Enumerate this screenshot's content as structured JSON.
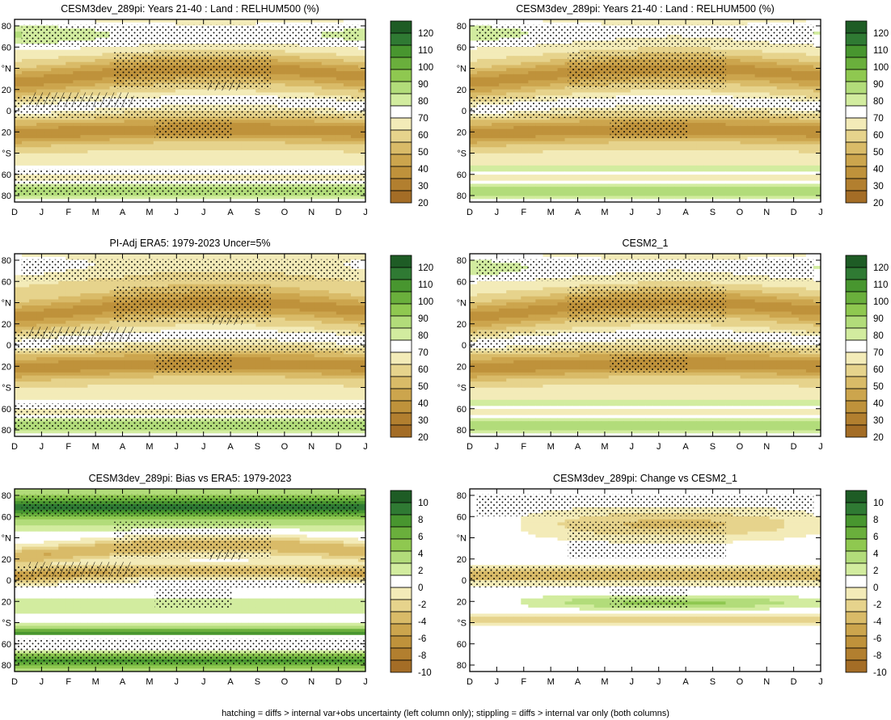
{
  "footer": "hatching = diffs > internal var+obs uncertainty (left column only); stippling = diffs > internal var only (both columns)",
  "months": [
    "D",
    "J",
    "F",
    "M",
    "A",
    "M",
    "J",
    "J",
    "A",
    "S",
    "O",
    "N",
    "D",
    "J"
  ],
  "lat_ticks": [
    "80",
    "60",
    "°N",
    "20",
    "0",
    "20",
    "°S",
    "60",
    "80"
  ],
  "colorbars": {
    "abs": {
      "labels": [
        "120",
        "110",
        "100",
        "90",
        "80",
        "70",
        "60",
        "50",
        "40",
        "30",
        "20"
      ],
      "colors": [
        "#1e5c25",
        "#2f7a33",
        "#48962f",
        "#6aaf3c",
        "#8fc850",
        "#b2dc7a",
        "#d2ec9f",
        "#ffffff",
        "#f3ebb8",
        "#e6d38c",
        "#d9bb68",
        "#cca54d",
        "#bf923b",
        "#b27f2f",
        "#a46d26"
      ]
    },
    "bias": {
      "labels": [
        "10",
        "8",
        "6",
        "4",
        "2",
        "0",
        "-2",
        "-4",
        "-6",
        "-8",
        "-10"
      ],
      "colors": [
        "#1e5c25",
        "#2f7a33",
        "#48962f",
        "#6aaf3c",
        "#8fc850",
        "#b2dc7a",
        "#d2ec9f",
        "#ffffff",
        "#f3ebb8",
        "#e6d38c",
        "#d9bb68",
        "#cca54d",
        "#bf923b",
        "#b27f2f",
        "#a46d26"
      ]
    }
  },
  "chart_data": [
    {
      "type": "heatmap",
      "title": "CESM3dev_289pi: Years 21-40 : Land : RELHUM500 (%)",
      "x": [
        "D",
        "J",
        "F",
        "M",
        "A",
        "M",
        "J",
        "J",
        "A",
        "S",
        "O",
        "N",
        "D",
        "J"
      ],
      "y_ticks": [
        "80",
        "60",
        "°N",
        "20",
        "0",
        "20",
        "°S",
        "60",
        "80"
      ],
      "colorbar": "abs",
      "values": [
        {
          "lat": "80N",
          "rh": 90
        },
        {
          "lat": "60N",
          "rh": 70
        },
        {
          "lat": "30N",
          "rh": 45
        },
        {
          "lat": "EQ",
          "rh": 68
        },
        {
          "lat": "20S",
          "rh": 40
        },
        {
          "lat": "50S",
          "rh": 70
        },
        {
          "lat": "80S",
          "rh": 88
        }
      ],
      "hatching": true,
      "stippling": true
    },
    {
      "type": "heatmap",
      "title": "CESM3dev_289pi: Years 21-40 : Land : RELHUM500 (%)",
      "x": [
        "D",
        "J",
        "F",
        "M",
        "A",
        "M",
        "J",
        "J",
        "A",
        "S",
        "O",
        "N",
        "D",
        "J"
      ],
      "y_ticks": [
        "80",
        "60",
        "°N",
        "20",
        "0",
        "20",
        "°S",
        "60",
        "80"
      ],
      "colorbar": "abs",
      "values": [
        {
          "lat": "80N",
          "rh": 82
        },
        {
          "lat": "60N",
          "rh": 70
        },
        {
          "lat": "30N",
          "rh": 45
        },
        {
          "lat": "EQ",
          "rh": 66
        },
        {
          "lat": "20S",
          "rh": 40
        },
        {
          "lat": "50S",
          "rh": 72
        },
        {
          "lat": "80S",
          "rh": 85
        }
      ],
      "hatching": false,
      "stippling": true
    },
    {
      "type": "heatmap",
      "title": "PI-Adj ERA5: 1979-2023 Uncer=5%",
      "x": [
        "D",
        "J",
        "F",
        "M",
        "A",
        "M",
        "J",
        "J",
        "A",
        "S",
        "O",
        "N",
        "D",
        "J"
      ],
      "y_ticks": [
        "80",
        "60",
        "°N",
        "20",
        "0",
        "20",
        "°S",
        "60",
        "80"
      ],
      "colorbar": "abs",
      "values": [
        {
          "lat": "80N",
          "rh": 70
        },
        {
          "lat": "60N",
          "rh": 62
        },
        {
          "lat": "30N",
          "rh": 45
        },
        {
          "lat": "EQ",
          "rh": 66
        },
        {
          "lat": "20S",
          "rh": 40
        },
        {
          "lat": "50S",
          "rh": 70
        },
        {
          "lat": "80S",
          "rh": 82
        }
      ],
      "hatching": true,
      "stippling": true
    },
    {
      "type": "heatmap",
      "title": "CESM2_1",
      "x": [
        "D",
        "J",
        "F",
        "M",
        "A",
        "M",
        "J",
        "J",
        "A",
        "S",
        "O",
        "N",
        "D",
        "J"
      ],
      "y_ticks": [
        "80",
        "60",
        "°N",
        "20",
        "0",
        "20",
        "°S",
        "60",
        "80"
      ],
      "colorbar": "abs",
      "values": [
        {
          "lat": "80N",
          "rh": 82
        },
        {
          "lat": "60N",
          "rh": 68
        },
        {
          "lat": "30N",
          "rh": 45
        },
        {
          "lat": "EQ",
          "rh": 62
        },
        {
          "lat": "20S",
          "rh": 40
        },
        {
          "lat": "50S",
          "rh": 72
        },
        {
          "lat": "80S",
          "rh": 85
        }
      ],
      "hatching": false,
      "stippling": true
    },
    {
      "type": "heatmap",
      "title": "CESM3dev_289pi: Bias vs ERA5: 1979-2023",
      "x": [
        "D",
        "J",
        "F",
        "M",
        "A",
        "M",
        "J",
        "J",
        "A",
        "S",
        "O",
        "N",
        "D",
        "J"
      ],
      "y_ticks": [
        "80",
        "60",
        "°N",
        "20",
        "0",
        "20",
        "°S",
        "60",
        "80"
      ],
      "colorbar": "bias",
      "values": [
        {
          "lat": "80N",
          "bias": 8
        },
        {
          "lat": "60N",
          "bias": 6
        },
        {
          "lat": "30N",
          "bias": -4
        },
        {
          "lat": "EQ",
          "bias": -6
        },
        {
          "lat": "20S",
          "bias": 0
        },
        {
          "lat": "50S",
          "bias": 6
        },
        {
          "lat": "80S",
          "bias": 7
        }
      ],
      "hatching": true,
      "stippling": true
    },
    {
      "type": "heatmap",
      "title": "CESM3dev_289pi: Change vs CESM2_1",
      "x": [
        "D",
        "J",
        "F",
        "M",
        "A",
        "M",
        "J",
        "J",
        "A",
        "S",
        "O",
        "N",
        "D",
        "J"
      ],
      "y_ticks": [
        "80",
        "60",
        "°N",
        "20",
        "0",
        "20",
        "°S",
        "60",
        "80"
      ],
      "colorbar": "bias",
      "values": [
        {
          "lat": "80N",
          "change": 0
        },
        {
          "lat": "60N",
          "change": -3
        },
        {
          "lat": "30N",
          "change": -4
        },
        {
          "lat": "EQ",
          "change": -4
        },
        {
          "lat": "20S",
          "change": 3
        },
        {
          "lat": "50S",
          "change": 0
        },
        {
          "lat": "80S",
          "change": 0
        }
      ],
      "hatching": false,
      "stippling": true
    }
  ]
}
